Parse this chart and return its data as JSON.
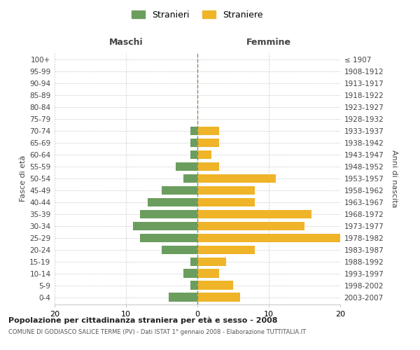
{
  "age_groups": [
    "0-4",
    "5-9",
    "10-14",
    "15-19",
    "20-24",
    "25-29",
    "30-34",
    "35-39",
    "40-44",
    "45-49",
    "50-54",
    "55-59",
    "60-64",
    "65-69",
    "70-74",
    "75-79",
    "80-84",
    "85-89",
    "90-94",
    "95-99",
    "100+"
  ],
  "birth_years": [
    "2003-2007",
    "1998-2002",
    "1993-1997",
    "1988-1992",
    "1983-1987",
    "1978-1982",
    "1973-1977",
    "1968-1972",
    "1963-1967",
    "1958-1962",
    "1953-1957",
    "1948-1952",
    "1943-1947",
    "1938-1942",
    "1933-1937",
    "1928-1932",
    "1923-1927",
    "1918-1922",
    "1913-1917",
    "1908-1912",
    "≤ 1907"
  ],
  "males": [
    4,
    1,
    2,
    1,
    5,
    8,
    9,
    8,
    7,
    5,
    2,
    3,
    1,
    1,
    1,
    0,
    0,
    0,
    0,
    0,
    0
  ],
  "females": [
    6,
    5,
    3,
    4,
    8,
    20,
    15,
    16,
    8,
    8,
    11,
    3,
    2,
    3,
    3,
    0,
    0,
    0,
    0,
    0,
    0
  ],
  "male_color": "#6b9e5e",
  "female_color": "#f0b429",
  "dashed_line_color": "#8b8b6a",
  "grid_color": "#cccccc",
  "background_color": "#ffffff",
  "title": "Popolazione per cittadinanza straniera per età e sesso - 2008",
  "subtitle": "COMUNE DI GODIASCO SALICE TERME (PV) - Dati ISTAT 1° gennaio 2008 - Elaborazione TUTTITALIA.IT",
  "xlabel_left": "Maschi",
  "xlabel_right": "Femmine",
  "ylabel_left": "Fasce di età",
  "ylabel_right": "Anni di nascita",
  "legend_male": "Stranieri",
  "legend_female": "Straniere",
  "xlim": 20
}
